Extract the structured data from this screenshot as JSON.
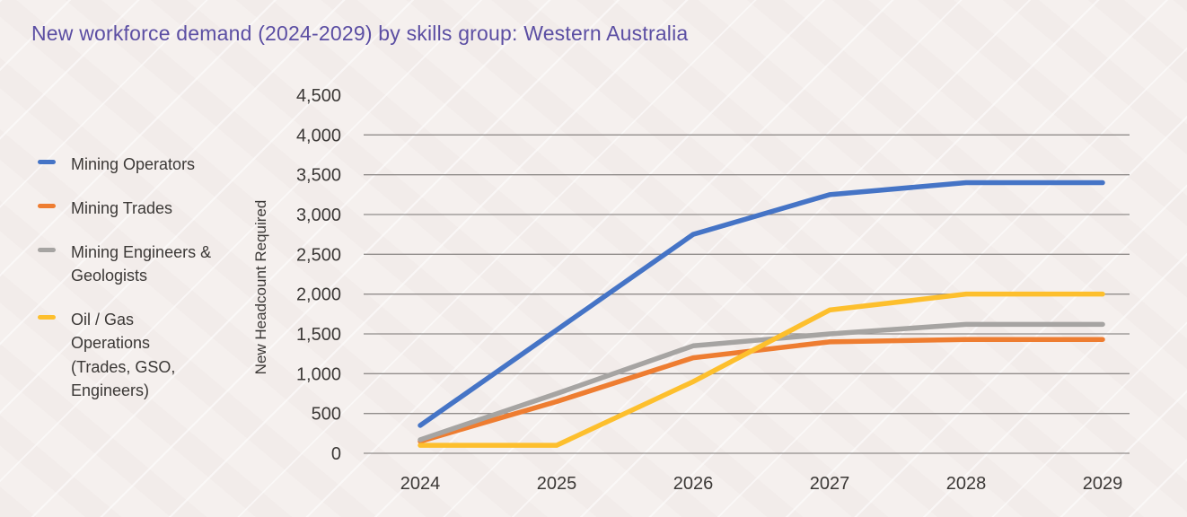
{
  "colors": {
    "title": "#5b4ea3",
    "axis_text": "#3b3836",
    "gridline": "#918d8b",
    "background": "#f5f0ee"
  },
  "chart_data": {
    "type": "line",
    "title": "New workforce demand (2024-2029) by skills group: Western Australia",
    "xlabel": "",
    "ylabel": "New Headcount Required",
    "x": [
      "2024",
      "2025",
      "2026",
      "2027",
      "2028",
      "2029"
    ],
    "ylim": [
      0,
      4500
    ],
    "yticks": [
      0,
      500,
      1000,
      1500,
      2000,
      2500,
      3000,
      3500,
      4000,
      4500
    ],
    "grid": "horizontal-only-up-to-4000",
    "legend_position": "left",
    "series": [
      {
        "name": "Mining Operators",
        "color": "#4574c6",
        "values": [
          350,
          1550,
          2750,
          3250,
          3400,
          3400
        ]
      },
      {
        "name": "Mining Trades",
        "color": "#ee7d31",
        "values": [
          150,
          650,
          1200,
          1400,
          1430,
          1430
        ]
      },
      {
        "name": "Mining Engineers & Geologists",
        "color": "#a6a4a2",
        "values": [
          170,
          750,
          1350,
          1500,
          1620,
          1620
        ]
      },
      {
        "name": "Oil / Gas Operations (Trades, GSO, Engineers)",
        "color": "#fdbf2d",
        "values": [
          100,
          100,
          900,
          1800,
          2000,
          2000
        ]
      }
    ]
  }
}
